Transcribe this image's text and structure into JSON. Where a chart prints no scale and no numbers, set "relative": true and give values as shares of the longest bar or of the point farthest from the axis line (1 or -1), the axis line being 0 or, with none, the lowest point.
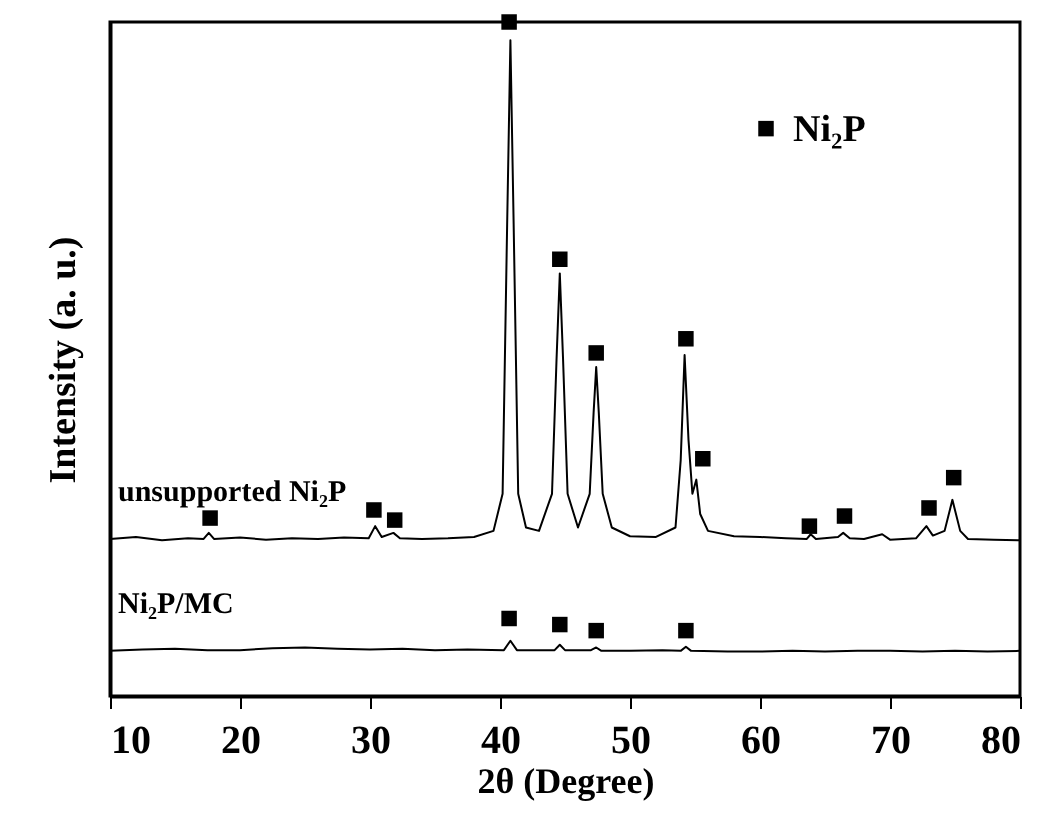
{
  "chart_data": {
    "type": "line",
    "xlabel": "2θ (Degree)",
    "ylabel": "Intensity (a. u.)",
    "relative": true,
    "legend": "top right",
    "xlim": [
      10,
      80
    ],
    "xticks": [
      10,
      20,
      30,
      40,
      50,
      60,
      70,
      80
    ],
    "series": [
      {
        "name": "unsupported Ni₂P",
        "color": "#000000",
        "x": [
          10,
          12,
          14,
          16,
          17.2,
          17.6,
          18,
          20,
          22,
          24,
          26,
          28,
          29.9,
          30.4,
          30.9,
          31.8,
          32.3,
          34,
          36,
          38,
          39.5,
          40.2,
          40.55,
          40.8,
          41.05,
          41.4,
          42,
          43,
          44,
          44.35,
          44.6,
          44.85,
          45.2,
          46,
          46.9,
          47.2,
          47.4,
          47.6,
          47.9,
          48.6,
          50,
          52,
          53.5,
          53.9,
          54.2,
          54.5,
          54.8,
          55.1,
          55.4,
          56,
          58,
          60,
          62,
          63.6,
          63.9,
          64.3,
          66,
          66.4,
          66.9,
          68,
          69.4,
          70,
          72,
          72.8,
          73.3,
          74.2,
          74.8,
          75.4,
          76,
          78,
          80
        ],
        "values": [
          0.233,
          0.236,
          0.231,
          0.234,
          0.233,
          0.242,
          0.233,
          0.235,
          0.232,
          0.234,
          0.233,
          0.235,
          0.234,
          0.252,
          0.236,
          0.242,
          0.234,
          0.233,
          0.234,
          0.236,
          0.245,
          0.3,
          0.7,
          0.973,
          0.7,
          0.3,
          0.25,
          0.245,
          0.3,
          0.5,
          0.627,
          0.5,
          0.3,
          0.25,
          0.3,
          0.42,
          0.488,
          0.42,
          0.3,
          0.25,
          0.237,
          0.236,
          0.25,
          0.35,
          0.506,
          0.38,
          0.3,
          0.321,
          0.27,
          0.245,
          0.237,
          0.236,
          0.234,
          0.233,
          0.24,
          0.233,
          0.236,
          0.242,
          0.234,
          0.233,
          0.24,
          0.232,
          0.234,
          0.252,
          0.238,
          0.245,
          0.291,
          0.245,
          0.233,
          0.232,
          0.231
        ]
      },
      {
        "name": "Ni₂P/MC",
        "color": "#000000",
        "x": [
          10,
          12.5,
          15,
          17.5,
          20,
          22.5,
          25,
          27.5,
          30,
          32.5,
          35,
          37.5,
          40.3,
          40.8,
          41.3,
          44.2,
          44.6,
          45,
          47,
          47.4,
          47.8,
          50,
          52.5,
          53.9,
          54.3,
          54.7,
          57.5,
          60,
          62.5,
          65,
          67.5,
          70,
          72.5,
          75,
          77.5,
          80
        ],
        "values": [
          0.067,
          0.069,
          0.07,
          0.068,
          0.068,
          0.071,
          0.072,
          0.07,
          0.069,
          0.07,
          0.068,
          0.069,
          0.068,
          0.082,
          0.068,
          0.068,
          0.076,
          0.068,
          0.068,
          0.072,
          0.067,
          0.067,
          0.068,
          0.067,
          0.073,
          0.067,
          0.066,
          0.066,
          0.067,
          0.066,
          0.067,
          0.067,
          0.066,
          0.067,
          0.066,
          0.067
        ]
      },
      {
        "name": "Ni₂P",
        "type": "scatter",
        "color": "#000000",
        "marker": "square",
        "x": [
          17.7,
          30.3,
          31.9,
          40.7,
          44.6,
          47.4,
          54.3,
          55.6,
          63.8,
          66.5,
          73.0,
          74.9,
          40.7,
          44.6,
          47.4,
          54.3
        ],
        "values": [
          0.264,
          0.276,
          0.261,
          1.0,
          0.648,
          0.509,
          0.53,
          0.352,
          0.252,
          0.267,
          0.279,
          0.324,
          0.115,
          0.106,
          0.097,
          0.097
        ]
      }
    ]
  }
}
